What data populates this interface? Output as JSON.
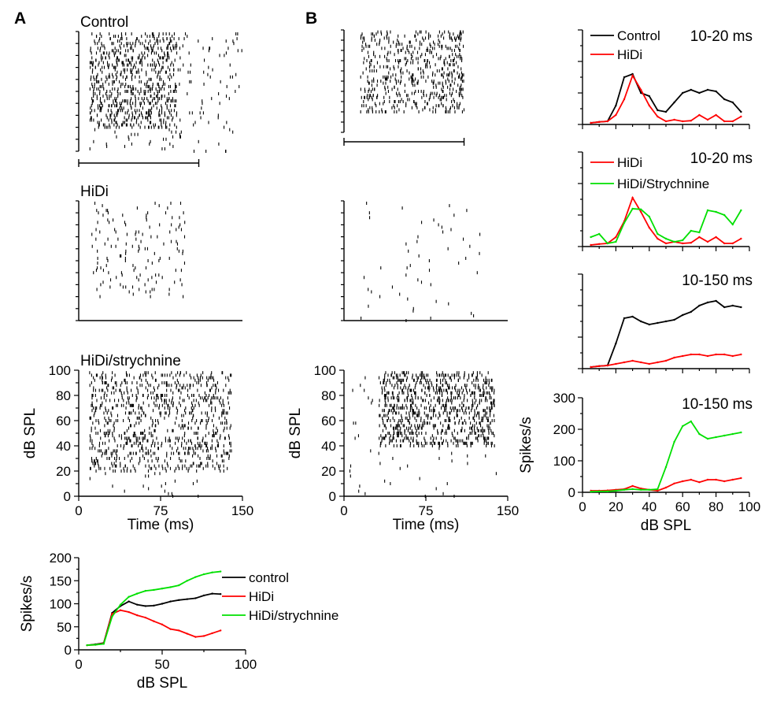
{
  "figure": {
    "panel_a_label": "A",
    "panel_b_label": "B",
    "raster_axes": {
      "time_label": "Time (ms)",
      "spl_label": "dB SPL",
      "time_ticks": [
        "0",
        "75",
        "150"
      ],
      "spl_ticks": [
        "0",
        "20",
        "40",
        "60",
        "80",
        "100"
      ]
    },
    "colors": {
      "control": "#000000",
      "hidi": "#ff0000",
      "strychnine": "#00e000"
    }
  },
  "chart_data": [
    {
      "id": "A-raster-control",
      "type": "raster",
      "title": "Control",
      "xlim": [
        0,
        150
      ],
      "ylim": [
        0,
        100
      ],
      "stimulus_ms": [
        0,
        110
      ],
      "spikes": [
        {
          "level_range": [
            20,
            90
          ],
          "t_start": 10,
          "t_end": 90,
          "density": 20
        },
        {
          "level_range": [
            0,
            90
          ],
          "t_start": 10,
          "t_end": 150,
          "density": 3
        }
      ]
    },
    {
      "id": "A-raster-hidi",
      "type": "raster",
      "title": "HiDi",
      "xlim": [
        0,
        150
      ],
      "ylim": [
        0,
        100
      ],
      "spikes": [
        {
          "level_range": [
            20,
            90
          ],
          "t_start": 12,
          "t_end": 20,
          "density": 6
        },
        {
          "level_range": [
            20,
            90
          ],
          "t_start": 20,
          "t_end": 100,
          "density": 4
        }
      ]
    },
    {
      "id": "A-raster-strychnine",
      "type": "raster",
      "title": "HiDi/strychnine",
      "xlabel": "Time (ms)",
      "ylabel": "dB SPL",
      "xlim": [
        0,
        150
      ],
      "ylim": [
        0,
        100
      ],
      "spikes": [
        {
          "level_range": [
            20,
            90
          ],
          "t_start": 10,
          "t_end": 140,
          "density": 18
        },
        {
          "level_range": [
            0,
            20
          ],
          "t_start": 10,
          "t_end": 110,
          "density": 2
        }
      ]
    },
    {
      "id": "A-rate-level",
      "type": "line",
      "xlabel": "dB SPL",
      "ylabel": "Spikes/s",
      "xlim": [
        0,
        100
      ],
      "ylim": [
        0,
        200
      ],
      "xticks": [
        "0",
        "50",
        "100"
      ],
      "yticks": [
        "0",
        "50",
        "100",
        "150",
        "200"
      ],
      "legend": "right",
      "series": [
        {
          "name": "control",
          "color": "#000000",
          "x": [
            5,
            10,
            15,
            20,
            25,
            30,
            35,
            40,
            45,
            50,
            55,
            60,
            65,
            70,
            75,
            80,
            85
          ],
          "values": [
            10,
            12,
            15,
            80,
            95,
            105,
            98,
            95,
            96,
            100,
            105,
            108,
            110,
            112,
            118,
            122,
            121
          ]
        },
        {
          "name": "HiDi",
          "color": "#ff0000",
          "x": [
            5,
            10,
            15,
            20,
            25,
            30,
            35,
            40,
            45,
            50,
            55,
            60,
            65,
            70,
            75,
            80,
            85
          ],
          "values": [
            10,
            11,
            14,
            78,
            86,
            82,
            75,
            70,
            62,
            55,
            45,
            42,
            35,
            28,
            30,
            36,
            42
          ]
        },
        {
          "name": "HiDi/strychnine",
          "color": "#00e000",
          "x": [
            5,
            10,
            15,
            20,
            25,
            30,
            35,
            40,
            45,
            50,
            55,
            60,
            65,
            70,
            75,
            80,
            85
          ],
          "values": [
            10,
            11,
            13,
            72,
            98,
            115,
            122,
            128,
            130,
            133,
            136,
            140,
            150,
            158,
            164,
            168,
            170
          ]
        }
      ]
    },
    {
      "id": "B-raster-control",
      "type": "raster",
      "xlim": [
        0,
        150
      ],
      "ylim": [
        0,
        100
      ],
      "stimulus_ms": [
        0,
        110
      ],
      "spikes": [
        {
          "level_range": [
            20,
            90
          ],
          "t_start": 15,
          "t_end": 110,
          "density": 16
        },
        {
          "level_range": [
            70,
            90
          ],
          "t_start": 115,
          "t_end": 125,
          "density": 3
        }
      ]
    },
    {
      "id": "B-raster-hidi",
      "type": "raster",
      "xlim": [
        0,
        150
      ],
      "ylim": [
        0,
        100
      ],
      "spikes": [
        {
          "level_range": [
            20,
            90
          ],
          "t_start": 120,
          "t_end": 126,
          "density": 6
        },
        {
          "level_range": [
            10,
            30
          ],
          "t_start": 15,
          "t_end": 20,
          "density": 5
        },
        {
          "level_range": [
            0,
            90
          ],
          "t_start": 15,
          "t_end": 125,
          "density": 1
        }
      ]
    },
    {
      "id": "B-raster-strychnine",
      "type": "raster",
      "xlabel": "Time (ms)",
      "ylabel": "dB SPL",
      "xlim": [
        0,
        150
      ],
      "ylim": [
        0,
        100
      ],
      "spikes": [
        {
          "level_range": [
            40,
            90
          ],
          "t_start": 32,
          "t_end": 138,
          "density": 26
        },
        {
          "level_range": [
            70,
            90
          ],
          "t_start": 14,
          "t_end": 24,
          "density": 5
        },
        {
          "level_range": [
            20,
            40
          ],
          "t_start": 14,
          "t_end": 18,
          "density": 3
        },
        {
          "level_range": [
            0,
            90
          ],
          "t_start": 5,
          "t_end": 140,
          "density": 1
        }
      ]
    },
    {
      "id": "B-rate-1",
      "type": "line",
      "title": "10-20 ms",
      "xlim": [
        0,
        100
      ],
      "ylim": [
        0,
        300
      ],
      "legend": "top-left",
      "series": [
        {
          "name": "Control",
          "color": "#000000",
          "x": [
            5,
            10,
            15,
            20,
            25,
            30,
            35,
            40,
            45,
            50,
            55,
            60,
            65,
            70,
            75,
            80,
            85,
            90,
            95
          ],
          "values": [
            5,
            8,
            10,
            60,
            150,
            160,
            100,
            90,
            45,
            40,
            70,
            100,
            110,
            100,
            110,
            105,
            80,
            70,
            40
          ]
        },
        {
          "name": "HiDi",
          "color": "#ff0000",
          "x": [
            5,
            10,
            15,
            20,
            25,
            30,
            35,
            40,
            45,
            50,
            55,
            60,
            65,
            70,
            75,
            80,
            85,
            90,
            95
          ],
          "values": [
            5,
            8,
            10,
            30,
            80,
            155,
            110,
            60,
            25,
            10,
            15,
            10,
            12,
            30,
            15,
            30,
            10,
            10,
            25
          ]
        }
      ]
    },
    {
      "id": "B-rate-2",
      "type": "line",
      "title": "10-20 ms",
      "xlim": [
        0,
        100
      ],
      "ylim": [
        0,
        300
      ],
      "legend": "top-left",
      "series": [
        {
          "name": "HiDi",
          "color": "#ff0000",
          "x": [
            5,
            10,
            15,
            20,
            25,
            30,
            35,
            40,
            45,
            50,
            55,
            60,
            65,
            70,
            75,
            80,
            85,
            90,
            95
          ],
          "values": [
            5,
            8,
            10,
            30,
            80,
            155,
            110,
            60,
            25,
            10,
            15,
            10,
            12,
            30,
            15,
            30,
            10,
            10,
            25
          ]
        },
        {
          "name": "HiDi/Strychnine",
          "color": "#00e000",
          "x": [
            5,
            10,
            15,
            20,
            25,
            30,
            35,
            40,
            45,
            50,
            55,
            60,
            65,
            70,
            75,
            80,
            85,
            90,
            95
          ],
          "values": [
            30,
            40,
            10,
            15,
            75,
            120,
            118,
            95,
            40,
            25,
            15,
            20,
            50,
            45,
            115,
            110,
            100,
            70,
            115
          ]
        }
      ]
    },
    {
      "id": "B-rate-3",
      "type": "line",
      "title": "10-150 ms",
      "xlim": [
        0,
        100
      ],
      "ylim": [
        0,
        300
      ],
      "series": [
        {
          "name": "Control",
          "color": "#000000",
          "x": [
            5,
            10,
            15,
            20,
            25,
            30,
            35,
            40,
            45,
            50,
            55,
            60,
            65,
            70,
            75,
            80,
            85,
            90,
            95
          ],
          "values": [
            5,
            8,
            10,
            80,
            160,
            165,
            150,
            140,
            145,
            150,
            155,
            170,
            180,
            200,
            210,
            215,
            195,
            200,
            195
          ]
        },
        {
          "name": "HiDi",
          "color": "#ff0000",
          "x": [
            5,
            10,
            15,
            20,
            25,
            30,
            35,
            40,
            45,
            50,
            55,
            60,
            65,
            70,
            75,
            80,
            85,
            90,
            95
          ],
          "values": [
            5,
            8,
            10,
            15,
            20,
            25,
            20,
            15,
            20,
            25,
            35,
            40,
            45,
            45,
            40,
            45,
            45,
            40,
            45
          ]
        }
      ]
    },
    {
      "id": "B-rate-4",
      "type": "line",
      "title": "10-150 ms",
      "xlabel": "dB SPL",
      "ylabel": "Spikes/s",
      "xlim": [
        0,
        100
      ],
      "ylim": [
        0,
        300
      ],
      "xticks": [
        "0",
        "20",
        "40",
        "60",
        "80",
        "100"
      ],
      "yticks": [
        "0",
        "100",
        "200",
        "300"
      ],
      "series": [
        {
          "name": "HiDi",
          "color": "#ff0000",
          "x": [
            5,
            10,
            15,
            20,
            25,
            30,
            35,
            40,
            45,
            50,
            55,
            60,
            65,
            70,
            75,
            80,
            85,
            90,
            95
          ],
          "values": [
            5,
            5,
            6,
            8,
            10,
            20,
            12,
            8,
            5,
            15,
            28,
            35,
            40,
            32,
            40,
            40,
            35,
            40,
            45
          ]
        },
        {
          "name": "HiDi/Strychnine",
          "color": "#00e000",
          "x": [
            5,
            10,
            15,
            20,
            25,
            30,
            35,
            40,
            45,
            50,
            55,
            60,
            65,
            70,
            75,
            80,
            85,
            90,
            95
          ],
          "values": [
            2,
            3,
            3,
            5,
            8,
            10,
            8,
            8,
            10,
            80,
            160,
            210,
            225,
            185,
            170,
            175,
            180,
            185,
            190
          ]
        }
      ]
    }
  ]
}
